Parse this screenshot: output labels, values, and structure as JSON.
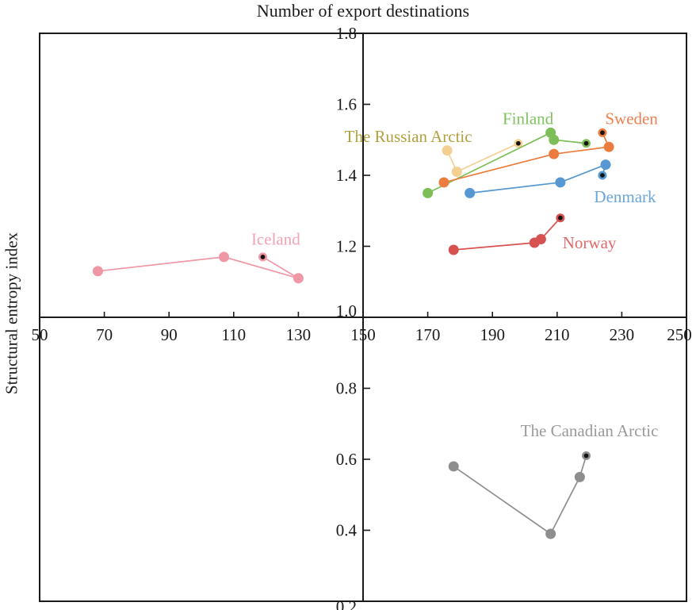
{
  "chart_data": {
    "type": "scatter",
    "title": "Number of export destinations",
    "xlabel": "Number of export destinations",
    "ylabel": "Structural entropy index",
    "x_range": [
      50,
      250
    ],
    "y_range": [
      0.2,
      1.8
    ],
    "axes_cross": [
      150,
      1.0
    ],
    "x_ticks": [
      50,
      70,
      90,
      110,
      130,
      150,
      170,
      190,
      210,
      230,
      250
    ],
    "y_ticks": [
      0.2,
      0.4,
      0.6,
      0.8,
      1.0,
      1.2,
      1.4,
      1.6,
      1.8
    ],
    "grid": false,
    "legend_position": "inline-labels",
    "frame_color": "#1a1a1a",
    "highlight_marker_fill": "#141414",
    "series": [
      {
        "name": "Iceland",
        "color": "#F097A6",
        "label_color": "#F2A4B4",
        "points": [
          [
            68,
            1.13
          ],
          [
            107,
            1.17
          ],
          [
            130,
            1.11
          ]
        ],
        "highlight_point": [
          119,
          1.17
        ],
        "label_pos": [
          123,
          1.22
        ]
      },
      {
        "name": "The Russian Arctic",
        "color": "#F3CF92",
        "label_color": "#B2A040",
        "points": [
          [
            176,
            1.47
          ],
          [
            179,
            1.41
          ]
        ],
        "highlight_point": [
          198,
          1.49
        ],
        "label_pos": [
          164,
          1.51
        ]
      },
      {
        "name": "Finland",
        "color": "#7EBE58",
        "label_color": "#80C160",
        "points": [
          [
            170,
            1.35
          ],
          [
            208,
            1.52
          ],
          [
            209,
            1.5
          ]
        ],
        "highlight_point": [
          219,
          1.49
        ],
        "label_pos": [
          201,
          1.56
        ]
      },
      {
        "name": "Sweden",
        "color": "#EC7C3D",
        "label_color": "#EF8052",
        "points": [
          [
            175,
            1.38
          ],
          [
            209,
            1.46
          ],
          [
            226,
            1.48
          ]
        ],
        "highlight_point": [
          224,
          1.52
        ],
        "label_pos": [
          233,
          1.56
        ]
      },
      {
        "name": "Denmark",
        "color": "#5598D2",
        "label_color": "#6BA5DA",
        "points": [
          [
            183,
            1.35
          ],
          [
            211,
            1.38
          ],
          [
            225,
            1.43
          ]
        ],
        "highlight_point": [
          224,
          1.4
        ],
        "label_pos": [
          231,
          1.34
        ]
      },
      {
        "name": "Norway",
        "color": "#D85151",
        "label_color": "#E06868",
        "points": [
          [
            178,
            1.19
          ],
          [
            203,
            1.21
          ],
          [
            205,
            1.22
          ]
        ],
        "highlight_point": [
          211,
          1.28
        ],
        "label_pos": [
          220,
          1.21
        ]
      },
      {
        "name": "The Canadian Arctic",
        "color": "#8E8E8E",
        "label_color": "#9A9A9A",
        "points": [
          [
            178,
            0.58
          ],
          [
            208,
            0.39
          ],
          [
            217,
            0.55
          ]
        ],
        "highlight_point": [
          219,
          0.61
        ],
        "label_pos": [
          220,
          0.68
        ]
      }
    ]
  }
}
